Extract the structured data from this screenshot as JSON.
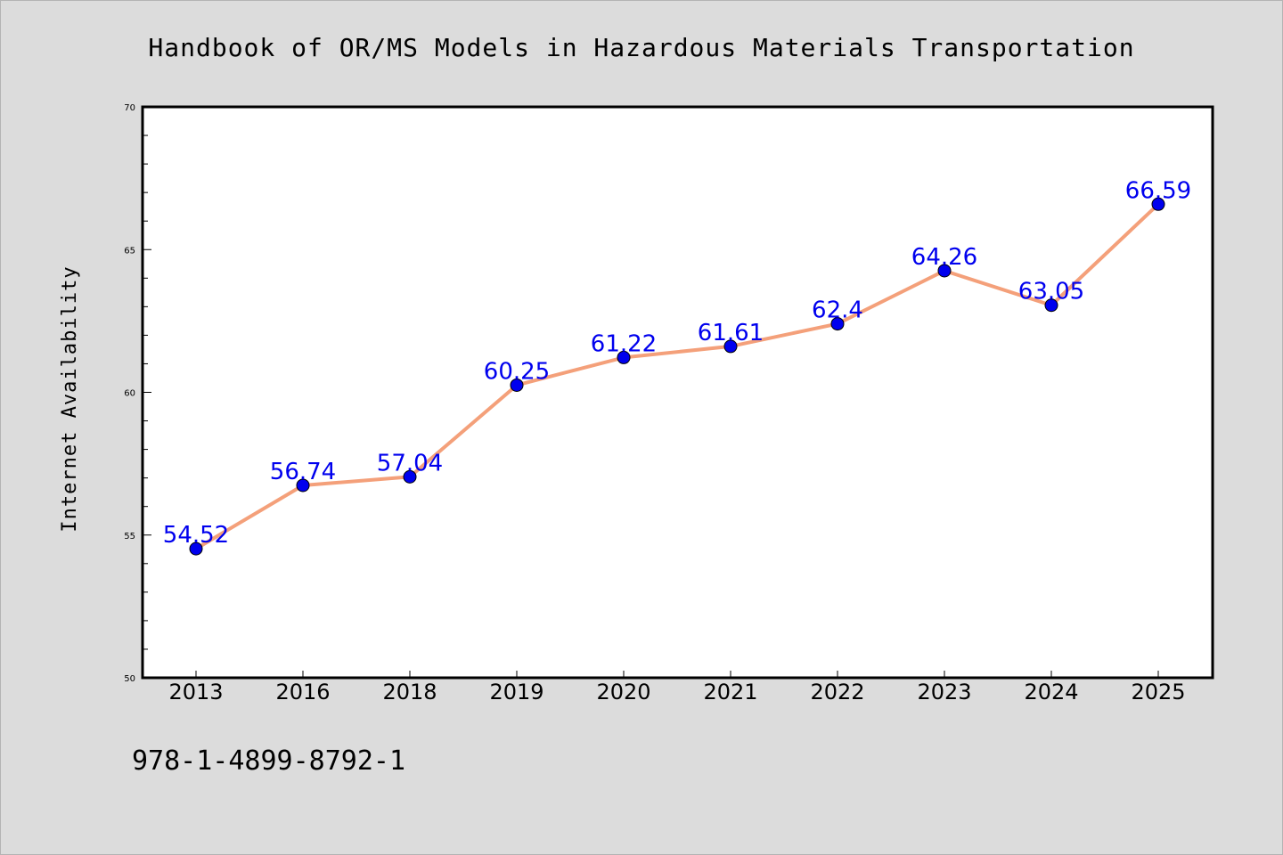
{
  "chart_data": {
    "type": "line",
    "title": "Handbook of OR/MS Models in Hazardous Materials Transportation",
    "xlabel": "",
    "ylabel": "Internet Availability",
    "categories": [
      "2013",
      "2016",
      "2018",
      "2019",
      "2020",
      "2021",
      "2022",
      "2023",
      "2024",
      "2025"
    ],
    "series": [
      {
        "values": [
          54.52,
          56.74,
          57.04,
          60.25,
          61.22,
          61.61,
          62.4,
          64.26,
          63.05,
          66.59
        ],
        "labels": [
          "54.52",
          "56.74",
          "57.04",
          "60.25",
          "61.22",
          "61.61",
          "62.4",
          "64.26",
          "63.05",
          "66.59"
        ],
        "line_color": "#f4a07a",
        "marker_color": "#0000ee",
        "label_color": "#0000ee"
      }
    ],
    "ylim": [
      50,
      70
    ],
    "yticks_major": [
      50,
      55,
      60,
      65,
      70
    ],
    "yticks_major_labels": [
      "50",
      "55",
      "60",
      "65",
      "70"
    ],
    "y_minor_step": 1,
    "grid": false,
    "legend": "none"
  },
  "footer": {
    "isbn": "978-1-4899-8792-1"
  },
  "colors": {
    "background": "#dcdcdc",
    "plot_background": "#ffffff",
    "axis": "#000000"
  }
}
